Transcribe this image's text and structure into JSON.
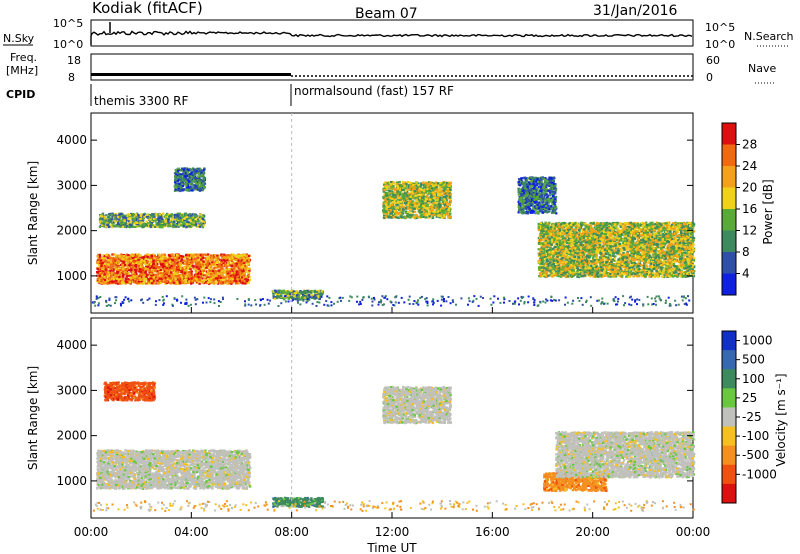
{
  "header": {
    "station": "Kodiak (fitACF)",
    "beam": "Beam 07",
    "date": "31/Jan/2016"
  },
  "top_panels": {
    "nsky_label": "N.Sky",
    "nsearch_label": "N.Search",
    "nsky_ticks": [
      "10^5",
      "10^0"
    ],
    "nsearch_ticks": [
      "10^5",
      "10^0"
    ],
    "freq_label_1": "Freq.",
    "freq_label_2": "[MHz]",
    "freq_ticks": [
      "18",
      "8"
    ],
    "nave_label": "Nave",
    "nave_ticks": [
      "60",
      "0"
    ],
    "cpid_label": "CPID",
    "cpid_segments": [
      {
        "label": "themis 3300 RF",
        "start_h": 0,
        "end_h": 8
      },
      {
        "label": "normalsound (fast) 157 RF",
        "start_h": 8,
        "end_h": 24
      }
    ]
  },
  "x_axis": {
    "label": "Time UT",
    "ticks": [
      "00:00",
      "04:00",
      "08:00",
      "12:00",
      "16:00",
      "20:00",
      "00:00"
    ]
  },
  "chart_data": [
    {
      "type": "heatmap",
      "title": "",
      "ylabel": "Slant Range [km]",
      "xlabel": "Time UT",
      "xlim_h": [
        0,
        24
      ],
      "ylim": [
        180,
        4600
      ],
      "yticks": [
        "1000",
        "2000",
        "3000",
        "4000"
      ],
      "colorbar_label": "Power [dB]",
      "colorbar_ticks": [
        "28",
        "24",
        "20",
        "16",
        "12",
        "8",
        "4"
      ],
      "colorbar_colors": [
        "#dd1010",
        "#f26a10",
        "#f3a11a",
        "#f0d21a",
        "#5aaa3a",
        "#3d8a5e",
        "#3050a8",
        "#1020e0"
      ],
      "regions": [
        {
          "name": "r1",
          "t0": 0.2,
          "t1": 6.3,
          "r0": 850,
          "r1": 1500,
          "level": 5
        },
        {
          "name": "r2",
          "t0": 0.3,
          "t1": 4.5,
          "r0": 2100,
          "r1": 2400,
          "level": 2
        },
        {
          "name": "r3",
          "t0": 3.3,
          "t1": 4.5,
          "r0": 2900,
          "r1": 3400,
          "level": 1
        },
        {
          "name": "r4",
          "t0": 7.2,
          "t1": 9.2,
          "r0": 500,
          "r1": 700,
          "level": 2
        },
        {
          "name": "r5",
          "t0": 11.6,
          "t1": 14.3,
          "r0": 2300,
          "r1": 3100,
          "level": 3
        },
        {
          "name": "r6",
          "t0": 17.8,
          "t1": 24,
          "r0": 1000,
          "r1": 2200,
          "level": 3
        },
        {
          "name": "r7",
          "t0": 17.0,
          "t1": 18.5,
          "r0": 2400,
          "r1": 3200,
          "level": 1
        }
      ]
    },
    {
      "type": "heatmap",
      "title": "",
      "ylabel": "Slant Range [km]",
      "xlabel": "Time UT",
      "xlim_h": [
        0,
        24
      ],
      "ylim": [
        180,
        4600
      ],
      "yticks": [
        "1000",
        "2000",
        "3000",
        "4000"
      ],
      "colorbar_label": "Velocity [m s⁻¹]",
      "colorbar_ticks": [
        "1000",
        "500",
        "100",
        "25",
        "-25",
        "-100",
        "-500",
        "-1000"
      ],
      "colorbar_colors": [
        "#1030c8",
        "#3868b0",
        "#3d8a5e",
        "#68c840",
        "#c0c0bc",
        "#f6c020",
        "#f39020",
        "#f05010",
        "#dd1010"
      ],
      "regions": [
        {
          "name": "v1",
          "t0": 0.2,
          "t1": 6.3,
          "r0": 850,
          "r1": 1700,
          "vel": 0
        },
        {
          "name": "v2",
          "t0": 7.2,
          "t1": 9.2,
          "r0": 450,
          "r1": 650,
          "vel": 100
        },
        {
          "name": "v3",
          "t0": 11.6,
          "t1": 14.3,
          "r0": 2300,
          "r1": 3100,
          "vel": 0
        },
        {
          "name": "v4",
          "t0": 18.0,
          "t1": 20.5,
          "r0": 800,
          "r1": 1200,
          "vel": -100
        },
        {
          "name": "v5",
          "t0": 18.5,
          "t1": 24,
          "r0": 1100,
          "r1": 2100,
          "vel": 0
        },
        {
          "name": "v6",
          "t0": 0.5,
          "t1": 2.5,
          "r0": 2800,
          "r1": 3200,
          "vel": -500
        }
      ]
    }
  ]
}
